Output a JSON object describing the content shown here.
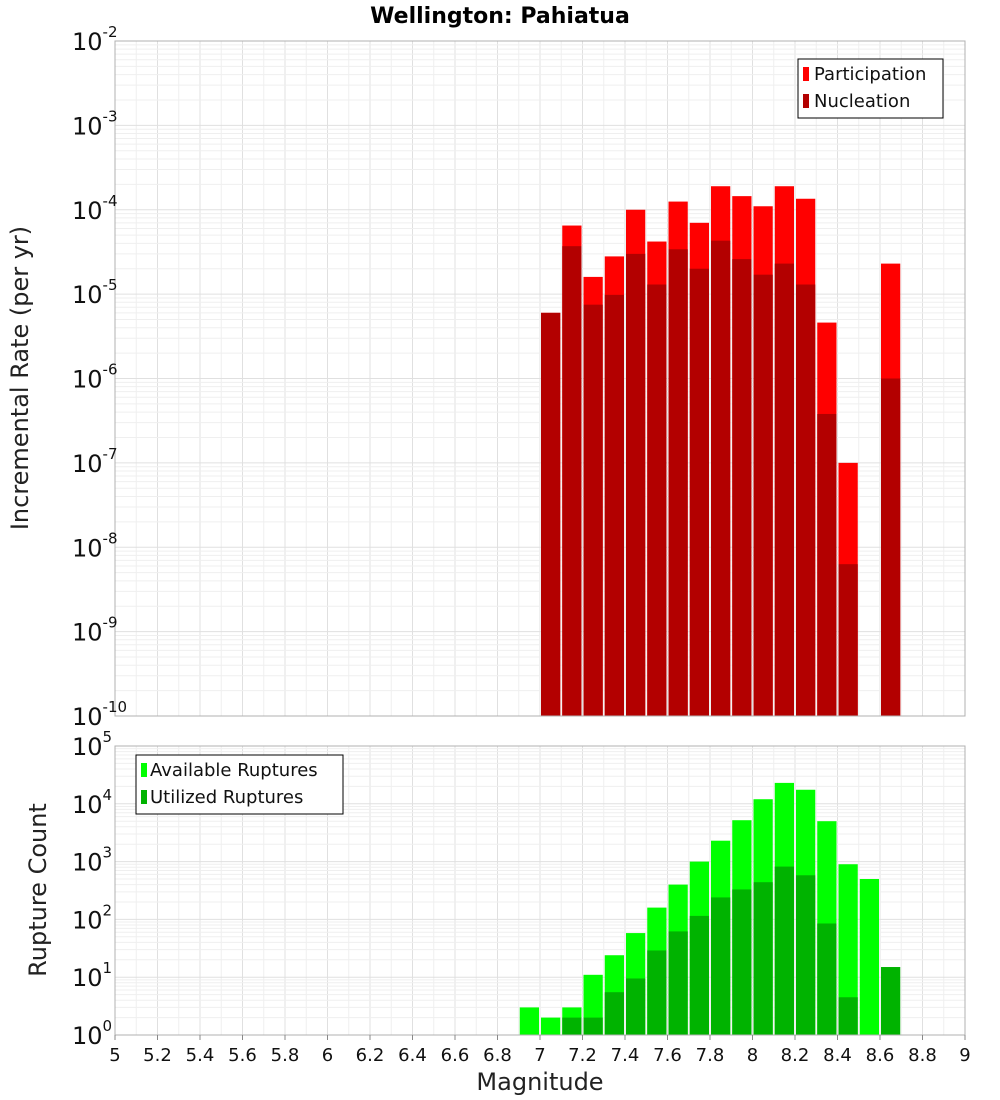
{
  "title": "Wellington: Pahiatua",
  "chart_data": [
    {
      "type": "bar",
      "panel": "top",
      "ylabel": "Incremental Rate (per yr)",
      "yscale": "log",
      "ylim_exp": [
        -10,
        -2
      ],
      "xlim": [
        5,
        9
      ],
      "bin_width": 0.1,
      "series": [
        {
          "name": "Participation",
          "color": "#ff0000",
          "points": [
            {
              "x": 7.05,
              "y": 6e-06
            },
            {
              "x": 7.15,
              "y": 6.5e-05
            },
            {
              "x": 7.25,
              "y": 1.6e-05
            },
            {
              "x": 7.35,
              "y": 2.8e-05
            },
            {
              "x": 7.45,
              "y": 0.0001
            },
            {
              "x": 7.55,
              "y": 4.2e-05
            },
            {
              "x": 7.65,
              "y": 0.000125
            },
            {
              "x": 7.75,
              "y": 7e-05
            },
            {
              "x": 7.85,
              "y": 0.00019
            },
            {
              "x": 7.95,
              "y": 0.000145
            },
            {
              "x": 8.05,
              "y": 0.00011
            },
            {
              "x": 8.15,
              "y": 0.00019
            },
            {
              "x": 8.25,
              "y": 0.000135
            },
            {
              "x": 8.35,
              "y": 4.6e-06
            },
            {
              "x": 8.45,
              "y": 1e-07
            },
            {
              "x": 8.65,
              "y": 2.3e-05
            }
          ]
        },
        {
          "name": "Nucleation",
          "color": "#b30000",
          "points": [
            {
              "x": 7.05,
              "y": 6e-06
            },
            {
              "x": 7.15,
              "y": 3.7e-05
            },
            {
              "x": 7.25,
              "y": 7.5e-06
            },
            {
              "x": 7.35,
              "y": 9.8e-06
            },
            {
              "x": 7.45,
              "y": 3e-05
            },
            {
              "x": 7.55,
              "y": 1.3e-05
            },
            {
              "x": 7.65,
              "y": 3.4e-05
            },
            {
              "x": 7.75,
              "y": 2e-05
            },
            {
              "x": 7.85,
              "y": 4.3e-05
            },
            {
              "x": 7.95,
              "y": 2.6e-05
            },
            {
              "x": 8.05,
              "y": 1.7e-05
            },
            {
              "x": 8.15,
              "y": 2.3e-05
            },
            {
              "x": 8.25,
              "y": 1.3e-05
            },
            {
              "x": 8.35,
              "y": 3.8e-07
            },
            {
              "x": 8.45,
              "y": 6.3e-09
            },
            {
              "x": 8.65,
              "y": 1e-06
            }
          ]
        }
      ],
      "legend": "top-right"
    },
    {
      "type": "bar",
      "panel": "bottom",
      "ylabel": "Rupture Count",
      "xlabel": "Magnitude",
      "yscale": "log",
      "ylim_exp": [
        0,
        5
      ],
      "xlim": [
        5,
        9
      ],
      "bin_width": 0.1,
      "xticks": [
        "5",
        "5.2",
        "5.4",
        "5.6",
        "5.8",
        "6",
        "6.2",
        "6.4",
        "6.6",
        "6.8",
        "7",
        "7.2",
        "7.4",
        "7.6",
        "7.8",
        "8",
        "8.2",
        "8.4",
        "8.6",
        "8.8",
        "9"
      ],
      "series": [
        {
          "name": "Available Ruptures",
          "color": "#00ff00",
          "points": [
            {
              "x": 6.95,
              "y": 3
            },
            {
              "x": 7.05,
              "y": 2
            },
            {
              "x": 7.15,
              "y": 3
            },
            {
              "x": 7.25,
              "y": 11
            },
            {
              "x": 7.35,
              "y": 24
            },
            {
              "x": 7.45,
              "y": 58
            },
            {
              "x": 7.55,
              "y": 160
            },
            {
              "x": 7.65,
              "y": 400
            },
            {
              "x": 7.75,
              "y": 1000
            },
            {
              "x": 7.85,
              "y": 2300
            },
            {
              "x": 7.95,
              "y": 5200
            },
            {
              "x": 8.05,
              "y": 12000
            },
            {
              "x": 8.15,
              "y": 23000
            },
            {
              "x": 8.25,
              "y": 17500
            },
            {
              "x": 8.35,
              "y": 5000
            },
            {
              "x": 8.45,
              "y": 900
            },
            {
              "x": 8.55,
              "y": 500
            }
          ]
        },
        {
          "name": "Utilized Ruptures",
          "color": "#00b300",
          "points": [
            {
              "x": 7.05,
              "y": 1
            },
            {
              "x": 7.15,
              "y": 2
            },
            {
              "x": 7.25,
              "y": 2
            },
            {
              "x": 7.35,
              "y": 5.5
            },
            {
              "x": 7.45,
              "y": 9.5
            },
            {
              "x": 7.55,
              "y": 29
            },
            {
              "x": 7.65,
              "y": 62
            },
            {
              "x": 7.75,
              "y": 115
            },
            {
              "x": 7.85,
              "y": 240
            },
            {
              "x": 7.95,
              "y": 330
            },
            {
              "x": 8.05,
              "y": 440
            },
            {
              "x": 8.15,
              "y": 820
            },
            {
              "x": 8.25,
              "y": 580
            },
            {
              "x": 8.35,
              "y": 85
            },
            {
              "x": 8.45,
              "y": 4.5
            },
            {
              "x": 8.65,
              "y": 15
            }
          ]
        }
      ],
      "legend": "top-left"
    }
  ]
}
